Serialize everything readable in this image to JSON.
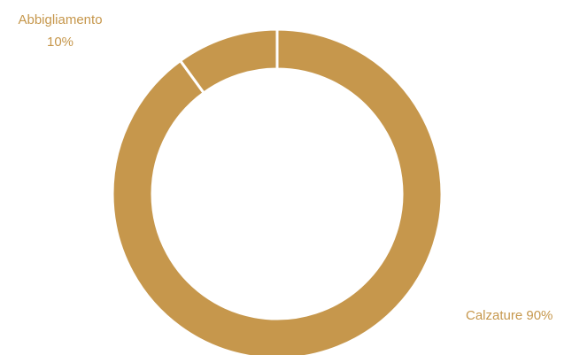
{
  "chart_data": {
    "type": "pie",
    "variant": "donut",
    "title": "",
    "color": "#C6974C",
    "separator_color": "#FFFFFF",
    "slices": [
      {
        "name": "Calzature",
        "value": 90,
        "label_text": "Calzature 90%"
      },
      {
        "name": "Abbigliamento",
        "value": 10,
        "label_line1": "Abbigliamento",
        "label_line2": "10%"
      }
    ]
  }
}
